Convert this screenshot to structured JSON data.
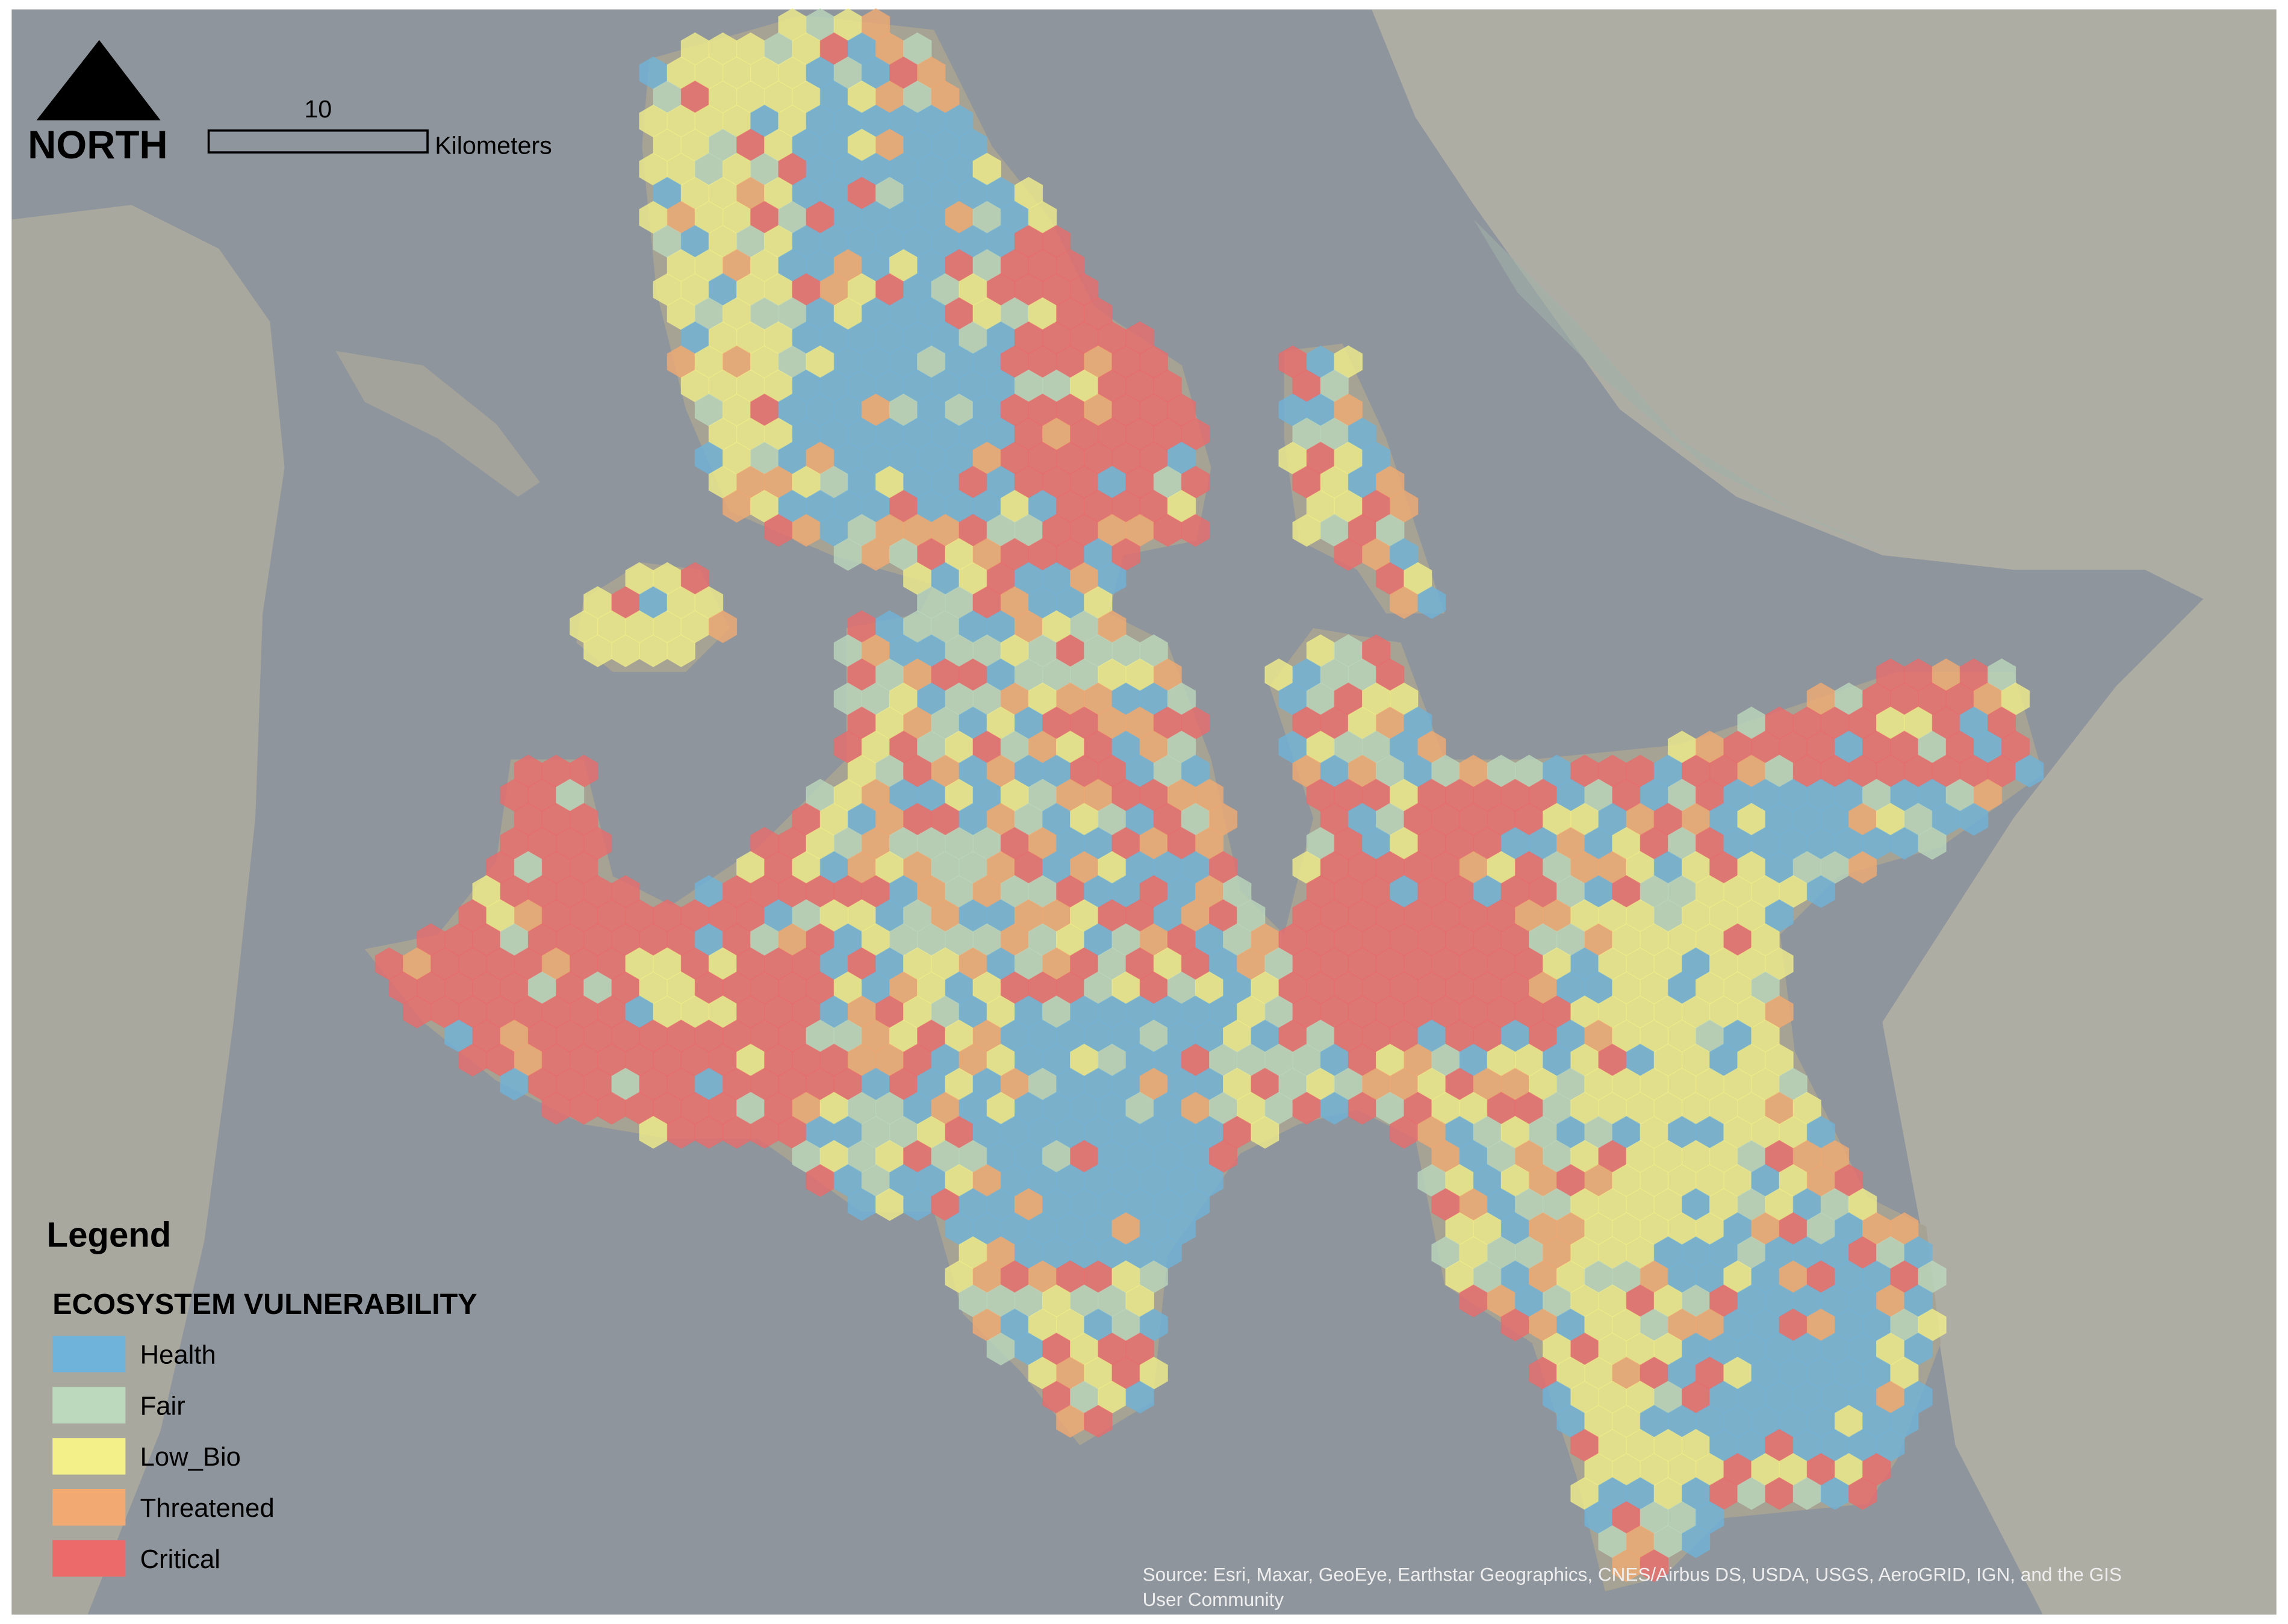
{
  "north_arrow": {
    "label": "NORTH"
  },
  "scale_bar": {
    "distance": "10",
    "unit": "Kilometers"
  },
  "legend": {
    "title": "Legend",
    "subtitle": "ECOSYSTEM VULNERABILITY",
    "items": [
      {
        "label": "Health",
        "color": "#6fb3da"
      },
      {
        "label": "Fair",
        "color": "#bcd9bd"
      },
      {
        "label": "Low_Bio",
        "color": "#f3f08a"
      },
      {
        "label": "Threatened",
        "color": "#f3aa72"
      },
      {
        "label": "Critical",
        "color": "#ec6a6a"
      }
    ]
  },
  "source": [
    "Source: Esri, Maxar, GeoEye, Earthstar Geographics, CNES/Airbus DS, USDA, USGS, AeroGRID, IGN, and the GIS",
    "User Community"
  ]
}
